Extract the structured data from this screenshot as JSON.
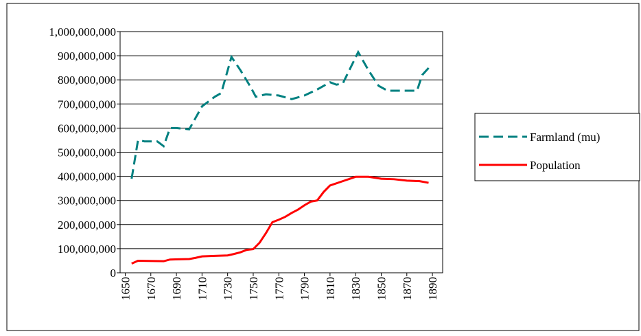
{
  "chart_data": {
    "type": "line",
    "xlim": [
      1646,
      1898
    ],
    "xticks": [
      1650,
      1670,
      1690,
      1710,
      1730,
      1750,
      1770,
      1790,
      1810,
      1830,
      1850,
      1870,
      1890
    ],
    "ylim": [
      0,
      1000000000
    ],
    "yticks": [
      0,
      {
        "value": 100000000,
        "label": "100,000,000"
      },
      {
        "value": 200000000,
        "label": "200,000,000"
      },
      {
        "value": 300000000,
        "label": "300,000,000"
      },
      {
        "value": 400000000,
        "label": "400,000,000"
      },
      {
        "value": 500000000,
        "label": "500,000,000"
      },
      {
        "value": 600000000,
        "label": "600,000,000"
      },
      {
        "value": 700000000,
        "label": "700,000,000"
      },
      {
        "value": 800000000,
        "label": "800,000,000"
      },
      {
        "value": 900000000,
        "label": "900,000,000"
      },
      {
        "value": 1000000000,
        "label": "1,000,000,000"
      }
    ],
    "grid": true,
    "legend": "right",
    "series": [
      {
        "name": "Farmland (mu)",
        "color": "#008080",
        "dash": true,
        "x": [
          1655,
          1660,
          1665,
          1670,
          1675,
          1680,
          1685,
          1690,
          1700,
          1710,
          1720,
          1725,
          1733,
          1740,
          1748,
          1752,
          1760,
          1770,
          1780,
          1790,
          1800,
          1810,
          1815,
          1820,
          1832,
          1840,
          1848,
          1855,
          1870,
          1878,
          1882,
          1888
        ],
        "values": [
          390000000,
          550000000,
          545000000,
          545000000,
          545000000,
          525000000,
          600000000,
          600000000,
          595000000,
          690000000,
          730000000,
          745000000,
          895000000,
          840000000,
          770000000,
          730000000,
          740000000,
          735000000,
          720000000,
          735000000,
          760000000,
          790000000,
          780000000,
          785000000,
          915000000,
          840000000,
          775000000,
          755000000,
          755000000,
          755000000,
          820000000,
          855000000
        ]
      },
      {
        "name": "Population",
        "color": "#ff0000",
        "dash": false,
        "x": [
          1655,
          1660,
          1680,
          1685,
          1700,
          1705,
          1710,
          1720,
          1730,
          1735,
          1740,
          1745,
          1750,
          1755,
          1760,
          1765,
          1770,
          1775,
          1780,
          1785,
          1790,
          1795,
          1800,
          1805,
          1810,
          1820,
          1830,
          1840,
          1850,
          1860,
          1870,
          1880,
          1887
        ],
        "values": [
          38000000,
          50000000,
          48000000,
          55000000,
          57000000,
          62000000,
          68000000,
          70000000,
          72000000,
          78000000,
          85000000,
          95000000,
          98000000,
          125000000,
          165000000,
          210000000,
          220000000,
          232000000,
          248000000,
          262000000,
          280000000,
          295000000,
          300000000,
          335000000,
          362000000,
          380000000,
          398000000,
          398000000,
          390000000,
          388000000,
          382000000,
          380000000,
          373000000
        ]
      }
    ]
  }
}
